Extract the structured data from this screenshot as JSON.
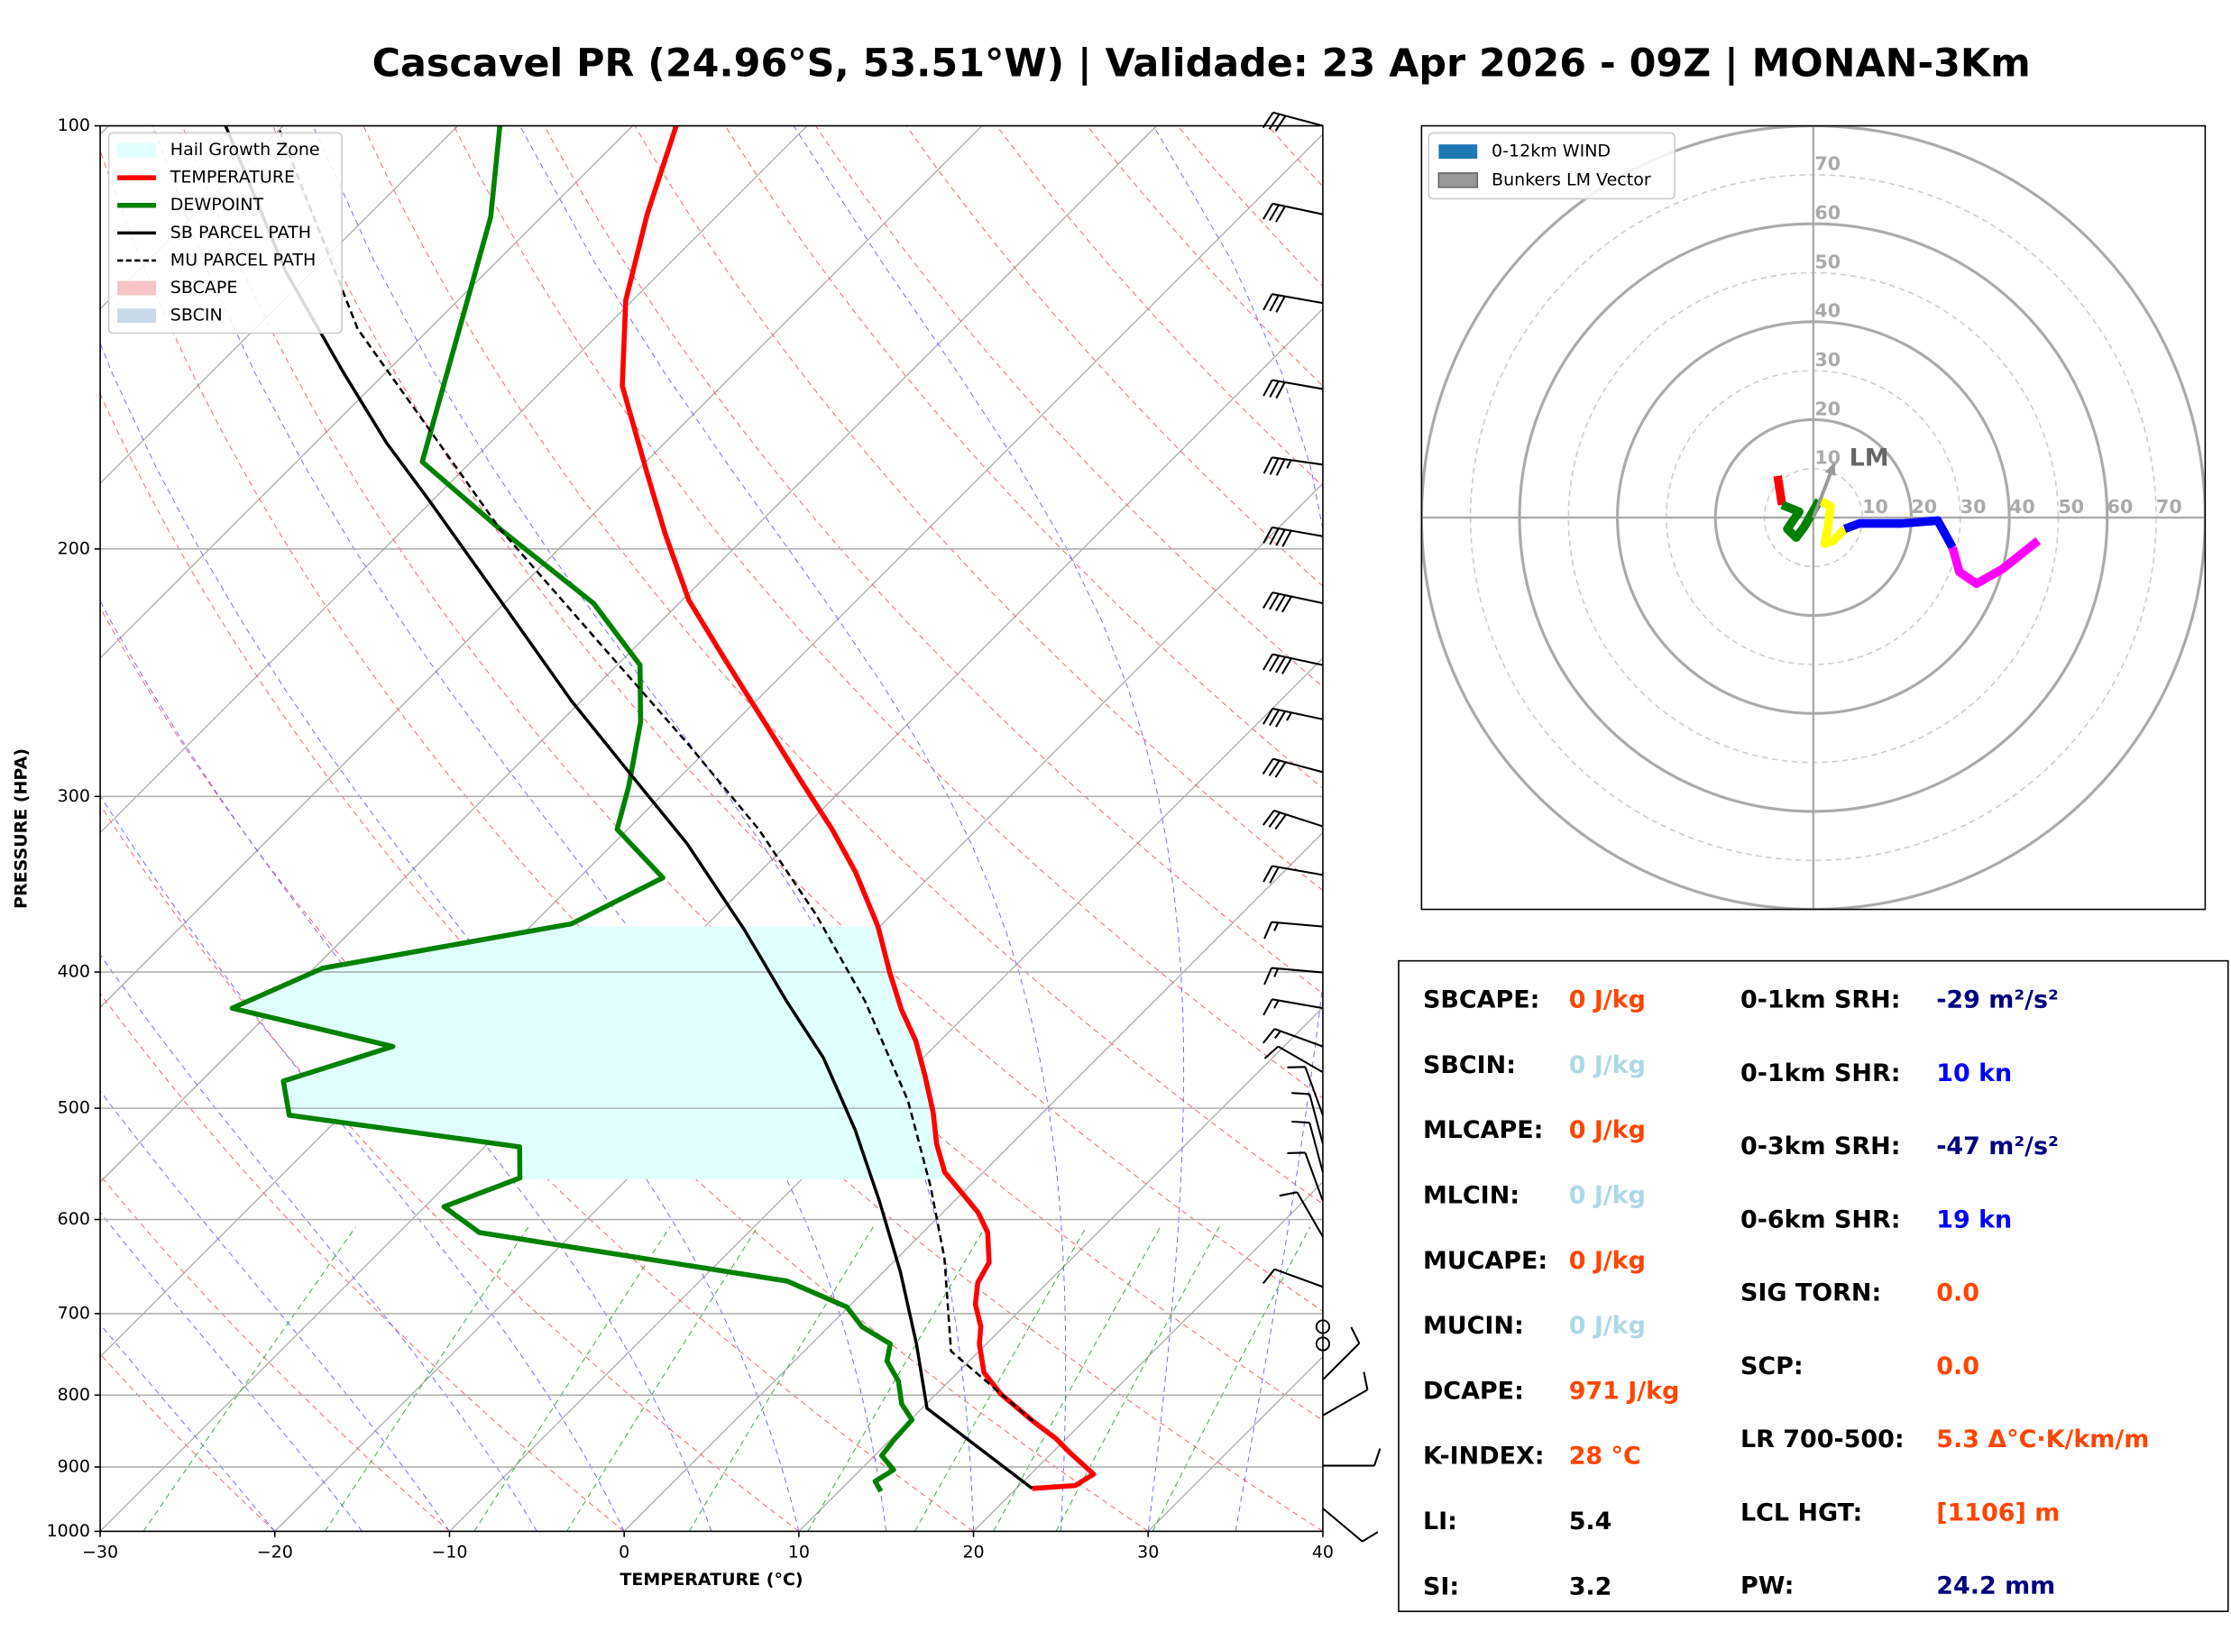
{
  "title": "Cascavel PR (24.96°S, 53.51°W) | Validade: 23 Apr 2026 - 09Z | MONAN-3Km",
  "chart_data": [
    {
      "type": "skewt",
      "xlabel": "TEMPERATURE (°C)",
      "ylabel": "PRESSURE (HPA)",
      "xlim": [
        -30,
        40
      ],
      "ylim": [
        1000,
        100
      ],
      "log_y": true,
      "grid": true,
      "legend": "upper left",
      "xticks": [
        {
          "value": -30,
          "label": "−30"
        },
        {
          "value": -20,
          "label": "−20"
        },
        {
          "value": -10,
          "label": "−10"
        },
        0,
        10,
        20,
        30,
        40
      ],
      "yticks": [
        1000,
        900,
        800,
        700,
        600,
        500,
        400,
        300,
        200,
        100
      ],
      "fills": [
        {
          "name": "Hail Growth Zone",
          "color": "#e0ffff",
          "plim": [
            371.3,
            561.9
          ]
        },
        {
          "name": "SBCAPE",
          "color": "#f7c5c5"
        },
        {
          "name": "SBCIN",
          "color": "#c9d9ea"
        }
      ],
      "series": [
        {
          "name": "TEMPERATURE",
          "color": "#ff0000",
          "width": 3.5,
          "linestyle": "solid",
          "pressure": [
            932.1,
            927.8,
            910.5,
            879,
            858.9,
            835,
            798.6,
            770.8,
            735.6,
            715.2,
            689.3,
            665.3,
            643.8,
            612.9,
            593.1,
            571.2,
            555.4,
            530,
            503.4,
            473.7,
            447.7,
            425.4,
            400.3,
            371.3,
            339.6,
            316.6,
            291.7,
            267.5,
            239.1,
            217.6,
            195.4,
            176.2,
            153.1,
            133.1,
            115.6,
            100
          ],
          "values": [
            20.9,
            23.2,
            23.6,
            21.0,
            19.4,
            17.1,
            13.7,
            11.5,
            9.6,
            8.7,
            7.1,
            6.0,
            5.5,
            3.7,
            2.0,
            -0.4,
            -2.2,
            -4.3,
            -6.3,
            -8.9,
            -11.4,
            -14.0,
            -16.8,
            -20.1,
            -24.5,
            -28.3,
            -33.0,
            -37.9,
            -44.3,
            -49.6,
            -54.7,
            -59.4,
            -65.7,
            -70.4,
            -74.1,
            -77.5
          ]
        },
        {
          "name": "DEWPOINT",
          "color": "#008000",
          "width": 3.5,
          "linestyle": "solid",
          "pressure": [
            936.5,
            921.2,
            904.2,
            883.2,
            858.9,
            833.1,
            811.8,
            781.8,
            756.7,
            735.6,
            715.2,
            692.4,
            663.7,
            612.9,
            587.6,
            560.6,
            532.7,
            505.8,
            478.2,
            451.9,
            424.4,
            397.5,
            369.6,
            342.8,
            316.6,
            295.1,
            265.6,
            241.9,
            218.6,
            193.6,
            173.4,
            116.1,
            100
          ],
          "values": [
            12.4,
            11.5,
            11.9,
            10.4,
            10.2,
            10.1,
            8.6,
            7.1,
            5.3,
            4.5,
            1.9,
            -0.1,
            -5.0,
            -25.4,
            -28.9,
            -26.2,
            -28.0,
            -43.0,
            -45.3,
            -41.0,
            -52.4,
            -49.5,
            -37.8,
            -35.2,
            -40.6,
            -42.4,
            -45.4,
            -48.7,
            -54.9,
            -64.5,
            -72.8,
            -82.9,
            -87.6
          ]
        },
        {
          "name": "SB PARCEL PATH",
          "color": "#000000",
          "width": 2.2,
          "linestyle": "solid",
          "pressure": [
            932.1,
            817.6,
            735.6,
            654.4,
            582.1,
            517.7,
            460.4,
            419.3,
            373.0,
            324.0,
            288.3,
            256.4,
            217.6,
            184.7,
            168.2,
            149.6,
            127.0,
            100
          ],
          "values": [
            20.9,
            10.3,
            6.0,
            1.0,
            -4.3,
            -9.8,
            -15.7,
            -21.1,
            -27.6,
            -35.8,
            -43.2,
            -50.6,
            -60.4,
            -70.2,
            -75.9,
            -82.5,
            -91.5,
            -103.3
          ]
        },
        {
          "name": "MU PARCEL PATH",
          "color": "#000000",
          "width": 1.6,
          "linestyle": "dashed",
          "pressure": [
            835,
            744.4,
            639.3,
            568.5,
            494.0,
            419.3,
            364.3,
            316.6,
            275.0,
            233.6,
            193.6,
            164.3,
            139.5,
            100
          ],
          "values": [
            17.1,
            8.4,
            2.7,
            -2.2,
            -8.4,
            -16.6,
            -24.3,
            -32.5,
            -41.5,
            -52.2,
            -64.5,
            -74.3,
            -84.1,
            -100.3
          ]
        }
      ],
      "wind_barbs": {
        "pressure": [
          100,
          115.6,
          133.7,
          153.9,
          174.2,
          195.9,
          218.6,
          241.9,
          264.4,
          288.3,
          315.1,
          341.2,
          371.3,
          400.3,
          424.4,
          451.9,
          471.4,
          505.8,
          530,
          555.4,
          582.1,
          617.2,
          670.0,
          715.2,
          735.6,
          780,
          827.1,
          898,
          963.2
        ],
        "speed": [
          30,
          30,
          30,
          30,
          35,
          40,
          40,
          40,
          35,
          30,
          30,
          20,
          15,
          15,
          15,
          15,
          10,
          10,
          10,
          10,
          10,
          10,
          10,
          0,
          0,
          10,
          10,
          10,
          10
        ],
        "direction": [
          285,
          282,
          280,
          280,
          278,
          280,
          282,
          282,
          282,
          285,
          288,
          280,
          275,
          275,
          280,
          290,
          300,
          340,
          345,
          345,
          340,
          330,
          290,
          0,
          0,
          45,
          60,
          90,
          130
        ]
      }
    },
    {
      "type": "hodograph",
      "xlim": [
        -80,
        80
      ],
      "ylim": [
        -80,
        80
      ],
      "ticks": [
        10,
        20,
        30,
        40,
        50,
        60,
        70
      ],
      "legend": "upper left",
      "legend_items": [
        {
          "name": "0-12km WIND",
          "color": "#1f77b4"
        },
        {
          "name": "Bunkers LM Vector",
          "color": "#999999"
        }
      ],
      "segments": [
        {
          "color": "#ff0000",
          "u": [
            -7.3,
            -6.4
          ],
          "v": [
            8.5,
            2.6
          ]
        },
        {
          "color": "#008000",
          "u": [
            -6.4,
            -2.9,
            -5.3,
            -3.5,
            -1.8,
            1.2
          ],
          "v": [
            2.6,
            1.2,
            -2.3,
            -4.1,
            -1.8,
            3.5
          ]
        },
        {
          "color": "#ffff00",
          "u": [
            1.2,
            3.5,
            2.9,
            2.3,
            4.1,
            6.4
          ],
          "v": [
            3.5,
            2.3,
            -2.3,
            -5.3,
            -4.7,
            -2.3
          ]
        },
        {
          "color": "#0000ff",
          "u": [
            6.4,
            9.4,
            18.1,
            25.4,
            28.4
          ],
          "v": [
            -2.3,
            -1.2,
            -1.2,
            -0.6,
            -6.1
          ]
        },
        {
          "color": "#ff00ff",
          "u": [
            28.4,
            29.8,
            33.3,
            38.6,
            45.9
          ],
          "v": [
            -6.1,
            -11.1,
            -13.5,
            -10.5,
            -4.7
          ]
        }
      ],
      "lm_vector": {
        "label": "LM",
        "u": 4.4,
        "v": 11.4,
        "color": "#999999"
      }
    }
  ],
  "parameters": {
    "left": [
      {
        "label": "SBCAPE:",
        "value": "0 J/kg",
        "color": "#ff4500"
      },
      {
        "label": "SBCIN:",
        "value": "0 J/kg",
        "color": "#add8e6"
      },
      {
        "label": "MLCAPE:",
        "value": "0 J/kg",
        "color": "#ff4500"
      },
      {
        "label": "MLCIN:",
        "value": "0 J/kg",
        "color": "#add8e6"
      },
      {
        "label": "MUCAPE:",
        "value": "0 J/kg",
        "color": "#ff4500"
      },
      {
        "label": "MUCIN:",
        "value": "0 J/kg",
        "color": "#add8e6"
      },
      {
        "label": "DCAPE:",
        "value": "971 J/kg",
        "color": "#ff4500"
      },
      {
        "label": "K-INDEX:",
        "value": "28 °C",
        "color": "#ff4500"
      },
      {
        "label": "LI:",
        "value": "5.4",
        "color": "#000000"
      },
      {
        "label": "SI:",
        "value": "3.2",
        "color": "#000000"
      }
    ],
    "right": [
      {
        "label": "0-1km SRH:",
        "value": "-29 m²/s²",
        "color": "#000080"
      },
      {
        "label": "0-1km SHR:",
        "value": "10 kn",
        "color": "#0000ff"
      },
      {
        "label": "0-3km SRH:",
        "value": "-47 m²/s²",
        "color": "#000080"
      },
      {
        "label": "0-6km SHR:",
        "value": "19 kn",
        "color": "#0000ff"
      },
      {
        "label": "SIG TORN:",
        "value": "0.0",
        "color": "#ff4500"
      },
      {
        "label": "SCP:",
        "value": "0.0",
        "color": "#ff4500"
      },
      {
        "label": "LR 700-500:",
        "value": "5.3 Δ°C·K/km/m",
        "color": "#ff4500"
      },
      {
        "label": "LCL HGT:",
        "value": "[1106] m",
        "color": "#ff4500"
      },
      {
        "label": "PW:",
        "value": "24.2 mm",
        "color": "#000080"
      }
    ]
  }
}
